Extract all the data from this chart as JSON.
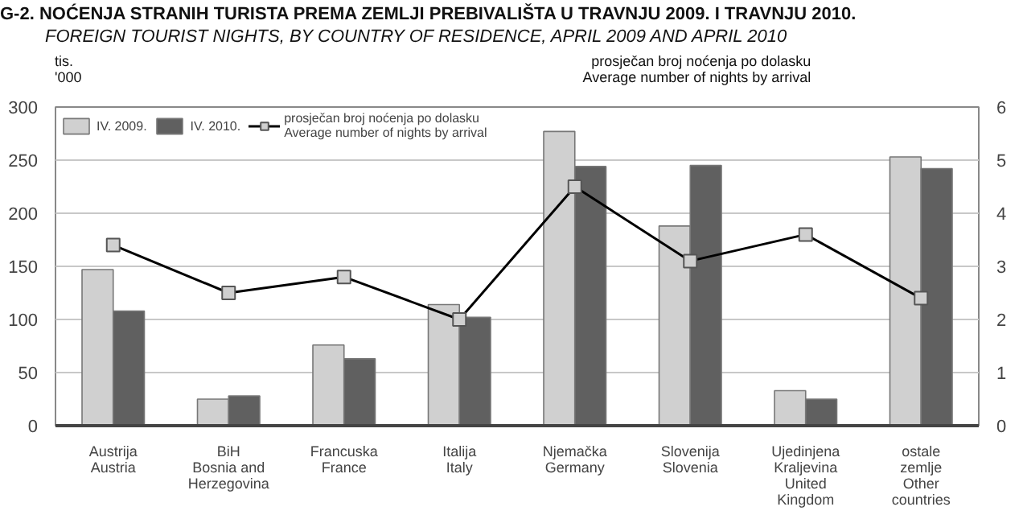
{
  "chart_data": {
    "type": "bar",
    "title": "G-2.  NOĆENJA STRANIH TURISTA PREMA ZEMLJI PREBIVALIŠTA U TRAVNJU 2009. I TRAVNJU 2010.",
    "subtitle": "FOREIGN TOURIST NIGHTS, BY COUNTRY OF RESIDENCE, APRIL 2009 AND APRIL 2010",
    "ylabel": "tis.\n'000",
    "y2label": "prosječan broj noćenja po dolasku\nAverage number of nights by arrival",
    "categories": [
      "Austrija\nAustria",
      "BiH\nBosnia and\nHerzegovina",
      "Francuska\nFrance",
      "Italija\nItaly",
      "Njemačka\nGermany",
      "Slovenija\nSlovenia",
      "Ujedinjena\nKraljevina\nUnited\nKingdom",
      "ostale\nzemlje\nOther\ncountries"
    ],
    "series": [
      {
        "name": "IV. 2009.",
        "color": "#d0d0d0",
        "values": [
          147,
          25,
          76,
          114,
          277,
          188,
          33,
          253
        ]
      },
      {
        "name": "IV. 2010.",
        "color": "#606060",
        "values": [
          108,
          28,
          63,
          102,
          244,
          245,
          25,
          242
        ]
      },
      {
        "name": "prosječan broj noćenja po dolasku\nAverage number of nights by arrival",
        "type": "line",
        "axis": "y2",
        "color": "#000000",
        "marker": "square",
        "values": [
          3.4,
          2.5,
          2.8,
          2.0,
          4.5,
          3.1,
          3.6,
          2.4
        ]
      }
    ],
    "ylim": [
      0,
      300
    ],
    "yticks": [
      0,
      50,
      100,
      150,
      200,
      250,
      300
    ],
    "y2lim": [
      0,
      6
    ],
    "y2ticks": [
      0,
      1,
      2,
      3,
      4,
      5,
      6
    ],
    "grid": "y",
    "legend": "top left"
  }
}
